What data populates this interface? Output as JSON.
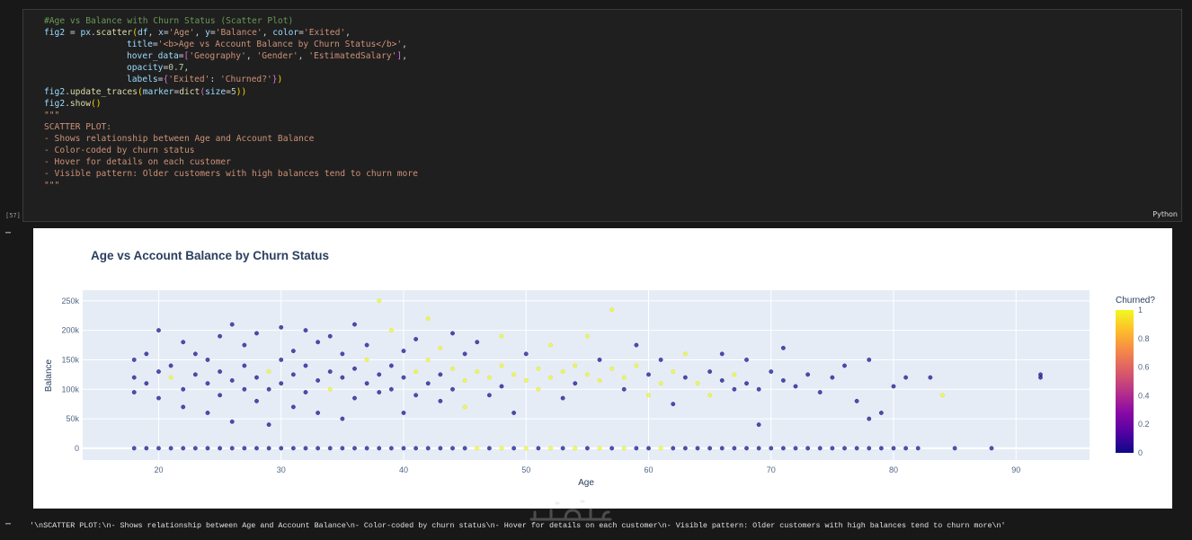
{
  "cell": {
    "exec_count": "[57]",
    "language": "Python",
    "code": {
      "comment": "#Age vs Balance with Churn Status (Scatter Plot)",
      "l1": [
        "fig2",
        " = ",
        "px",
        ".",
        "scatter",
        "(",
        "df",
        ", ",
        "x",
        "=",
        "'Age'",
        ", ",
        "y",
        "=",
        "'Balance'",
        ", ",
        "color",
        "=",
        "'Exited'",
        ","
      ],
      "l2": [
        "title",
        "=",
        "'<b>Age vs Account Balance by Churn Status</b>'",
        ","
      ],
      "l3": [
        "hover_data",
        "=",
        "[",
        "'Geography'",
        ", ",
        "'Gender'",
        ", ",
        "'EstimatedSalary'",
        "]",
        ","
      ],
      "l4": [
        "opacity",
        "=",
        "0.7",
        ","
      ],
      "l5": [
        "labels",
        "=",
        "{",
        "'Exited'",
        ": ",
        "'Churned?'",
        "}",
        ")"
      ],
      "l6": [
        "fig2",
        ".",
        "update_traces",
        "(",
        "marker",
        "=",
        "dict",
        "(",
        "size",
        "=",
        "5",
        "))"
      ],
      "l7": [
        "fig2",
        ".",
        "show",
        "()"
      ],
      "doc": [
        "\"\"\"",
        "SCATTER PLOT:",
        "- Shows relationship between Age and Account Balance",
        "- Color-coded by churn status",
        "- Hover for details on each customer",
        "- Visible pattern: Older customers with high balances tend to churn more",
        "\"\"\""
      ]
    }
  },
  "output": {
    "text": "'\\nSCATTER PLOT:\\n- Shows relationship between Age and Account Balance\\n- Color-coded by churn status\\n- Hover for details on each customer\\n- Visible pattern: Older customers with high balances tend to churn more\\n'"
  },
  "watermark": "خمسات",
  "chart_data": {
    "type": "scatter",
    "title": "Age vs Account Balance by Churn Status",
    "xlabel": "Age",
    "ylabel": "Balance",
    "xlim": [
      13.8,
      96
    ],
    "ylim": [
      -20000,
      268000
    ],
    "xticks": [
      20,
      30,
      40,
      50,
      60,
      70,
      80,
      90
    ],
    "yticks": [
      0,
      50000,
      100000,
      150000,
      200000,
      250000
    ],
    "ytick_labels": [
      "0",
      "50k",
      "100k",
      "150k",
      "200k",
      "250k"
    ],
    "colorbar": {
      "title": "Churned?",
      "ticks": [
        "0",
        "0.2",
        "0.4",
        "0.6",
        "0.8",
        "1"
      ],
      "colorscale": [
        "#0d0887",
        "#5302a3",
        "#8b0aa5",
        "#b83289",
        "#db5c68",
        "#f48849",
        "#febd2a",
        "#f0f921"
      ]
    },
    "grid": true,
    "marker_opacity": 0.7,
    "points": [
      [
        18,
        0,
        0
      ],
      [
        18,
        120000,
        0
      ],
      [
        18,
        95000,
        0
      ],
      [
        18,
        150000,
        0
      ],
      [
        19,
        0,
        0
      ],
      [
        19,
        110000,
        0
      ],
      [
        19,
        160000,
        0
      ],
      [
        20,
        0,
        0
      ],
      [
        20,
        130000,
        0
      ],
      [
        20,
        200000,
        0
      ],
      [
        20,
        85000,
        0
      ],
      [
        21,
        0,
        0
      ],
      [
        21,
        120000,
        1
      ],
      [
        21,
        140000,
        0
      ],
      [
        22,
        0,
        0
      ],
      [
        22,
        100000,
        0
      ],
      [
        22,
        180000,
        0
      ],
      [
        22,
        70000,
        0
      ],
      [
        23,
        0,
        0
      ],
      [
        23,
        125000,
        0
      ],
      [
        23,
        160000,
        0
      ],
      [
        24,
        0,
        0
      ],
      [
        24,
        110000,
        0
      ],
      [
        24,
        150000,
        0
      ],
      [
        24,
        60000,
        0
      ],
      [
        25,
        0,
        0
      ],
      [
        25,
        130000,
        0
      ],
      [
        25,
        190000,
        0
      ],
      [
        25,
        90000,
        0
      ],
      [
        26,
        0,
        0
      ],
      [
        26,
        115000,
        0
      ],
      [
        26,
        210000,
        0
      ],
      [
        26,
        45000,
        0
      ],
      [
        27,
        0,
        0
      ],
      [
        27,
        140000,
        0
      ],
      [
        27,
        100000,
        0
      ],
      [
        27,
        175000,
        0
      ],
      [
        28,
        0,
        0
      ],
      [
        28,
        120000,
        0
      ],
      [
        28,
        80000,
        0
      ],
      [
        28,
        195000,
        0
      ],
      [
        29,
        0,
        0
      ],
      [
        29,
        130000,
        1
      ],
      [
        29,
        100000,
        0
      ],
      [
        29,
        40000,
        0
      ],
      [
        30,
        0,
        0
      ],
      [
        30,
        110000,
        0
      ],
      [
        30,
        150000,
        0
      ],
      [
        30,
        205000,
        0
      ],
      [
        31,
        0,
        0
      ],
      [
        31,
        125000,
        0
      ],
      [
        31,
        70000,
        0
      ],
      [
        31,
        165000,
        0
      ],
      [
        32,
        0,
        0
      ],
      [
        32,
        140000,
        0
      ],
      [
        32,
        95000,
        0
      ],
      [
        32,
        200000,
        0
      ],
      [
        33,
        0,
        0
      ],
      [
        33,
        115000,
        0
      ],
      [
        33,
        180000,
        0
      ],
      [
        33,
        60000,
        0
      ],
      [
        34,
        0,
        0
      ],
      [
        34,
        130000,
        0
      ],
      [
        34,
        100000,
        1
      ],
      [
        34,
        190000,
        0
      ],
      [
        35,
        0,
        0
      ],
      [
        35,
        120000,
        0
      ],
      [
        35,
        160000,
        0
      ],
      [
        35,
        50000,
        0
      ],
      [
        36,
        0,
        0
      ],
      [
        36,
        135000,
        0
      ],
      [
        36,
        210000,
        0
      ],
      [
        36,
        85000,
        0
      ],
      [
        37,
        0,
        0
      ],
      [
        37,
        110000,
        0
      ],
      [
        37,
        150000,
        1
      ],
      [
        37,
        175000,
        0
      ],
      [
        38,
        0,
        0
      ],
      [
        38,
        125000,
        0
      ],
      [
        38,
        250000,
        1
      ],
      [
        38,
        95000,
        0
      ],
      [
        39,
        0,
        0
      ],
      [
        39,
        140000,
        0
      ],
      [
        39,
        100000,
        0
      ],
      [
        39,
        200000,
        1
      ],
      [
        40,
        0,
        0
      ],
      [
        40,
        120000,
        0
      ],
      [
        40,
        165000,
        0
      ],
      [
        40,
        60000,
        0
      ],
      [
        41,
        0,
        0
      ],
      [
        41,
        130000,
        1
      ],
      [
        41,
        90000,
        0
      ],
      [
        41,
        185000,
        0
      ],
      [
        42,
        0,
        0
      ],
      [
        42,
        110000,
        0
      ],
      [
        42,
        150000,
        1
      ],
      [
        42,
        220000,
        1
      ],
      [
        43,
        0,
        0
      ],
      [
        43,
        125000,
        0
      ],
      [
        43,
        170000,
        1
      ],
      [
        43,
        80000,
        0
      ],
      [
        44,
        0,
        0
      ],
      [
        44,
        135000,
        1
      ],
      [
        44,
        100000,
        0
      ],
      [
        44,
        195000,
        0
      ],
      [
        45,
        0,
        0
      ],
      [
        45,
        115000,
        1
      ],
      [
        45,
        160000,
        0
      ],
      [
        45,
        70000,
        1
      ],
      [
        46,
        0,
        1
      ],
      [
        46,
        130000,
        1
      ],
      [
        46,
        180000,
        0
      ],
      [
        47,
        0,
        0
      ],
      [
        47,
        120000,
        1
      ],
      [
        47,
        90000,
        0
      ],
      [
        48,
        0,
        1
      ],
      [
        48,
        140000,
        1
      ],
      [
        48,
        105000,
        0
      ],
      [
        48,
        190000,
        1
      ],
      [
        49,
        0,
        0
      ],
      [
        49,
        125000,
        1
      ],
      [
        49,
        60000,
        0
      ],
      [
        50,
        0,
        1
      ],
      [
        50,
        115000,
        1
      ],
      [
        50,
        160000,
        0
      ],
      [
        51,
        0,
        0
      ],
      [
        51,
        135000,
        1
      ],
      [
        51,
        100000,
        1
      ],
      [
        52,
        0,
        1
      ],
      [
        52,
        120000,
        1
      ],
      [
        52,
        175000,
        1
      ],
      [
        53,
        0,
        0
      ],
      [
        53,
        130000,
        1
      ],
      [
        53,
        85000,
        0
      ],
      [
        54,
        0,
        1
      ],
      [
        54,
        140000,
        1
      ],
      [
        54,
        110000,
        0
      ],
      [
        55,
        0,
        0
      ],
      [
        55,
        125000,
        1
      ],
      [
        55,
        190000,
        1
      ],
      [
        56,
        0,
        1
      ],
      [
        56,
        115000,
        1
      ],
      [
        56,
        150000,
        0
      ],
      [
        57,
        0,
        0
      ],
      [
        57,
        135000,
        1
      ],
      [
        57,
        235000,
        1
      ],
      [
        58,
        0,
        1
      ],
      [
        58,
        120000,
        1
      ],
      [
        58,
        100000,
        0
      ],
      [
        59,
        0,
        0
      ],
      [
        59,
        140000,
        1
      ],
      [
        59,
        175000,
        0
      ],
      [
        60,
        0,
        0
      ],
      [
        60,
        125000,
        0
      ],
      [
        60,
        90000,
        1
      ],
      [
        61,
        0,
        1
      ],
      [
        61,
        110000,
        1
      ],
      [
        61,
        150000,
        0
      ],
      [
        62,
        0,
        0
      ],
      [
        62,
        130000,
        1
      ],
      [
        62,
        75000,
        0
      ],
      [
        63,
        0,
        0
      ],
      [
        63,
        120000,
        0
      ],
      [
        63,
        160000,
        1
      ],
      [
        64,
        0,
        0
      ],
      [
        64,
        110000,
        1
      ],
      [
        65,
        0,
        0
      ],
      [
        65,
        130000,
        0
      ],
      [
        65,
        90000,
        1
      ],
      [
        66,
        0,
        0
      ],
      [
        66,
        115000,
        0
      ],
      [
        66,
        160000,
        0
      ],
      [
        67,
        0,
        0
      ],
      [
        67,
        125000,
        1
      ],
      [
        67,
        100000,
        0
      ],
      [
        68,
        0,
        0
      ],
      [
        68,
        110000,
        0
      ],
      [
        68,
        150000,
        0
      ],
      [
        69,
        0,
        0
      ],
      [
        69,
        100000,
        0
      ],
      [
        69,
        40000,
        0
      ],
      [
        70,
        0,
        0
      ],
      [
        70,
        130000,
        0
      ],
      [
        71,
        0,
        0
      ],
      [
        71,
        115000,
        0
      ],
      [
        71,
        170000,
        0
      ],
      [
        72,
        0,
        0
      ],
      [
        72,
        105000,
        0
      ],
      [
        73,
        0,
        0
      ],
      [
        73,
        125000,
        0
      ],
      [
        74,
        0,
        0
      ],
      [
        74,
        95000,
        0
      ],
      [
        75,
        0,
        0
      ],
      [
        75,
        120000,
        0
      ],
      [
        76,
        0,
        0
      ],
      [
        76,
        140000,
        0
      ],
      [
        77,
        0,
        0
      ],
      [
        77,
        80000,
        0
      ],
      [
        78,
        0,
        0
      ],
      [
        78,
        50000,
        0
      ],
      [
        78,
        150000,
        0
      ],
      [
        79,
        0,
        0
      ],
      [
        79,
        60000,
        0
      ],
      [
        80,
        0,
        0
      ],
      [
        80,
        105000,
        0
      ],
      [
        81,
        0,
        0
      ],
      [
        81,
        120000,
        0
      ],
      [
        82,
        0,
        0
      ],
      [
        83,
        120000,
        0
      ],
      [
        84,
        90000,
        1
      ],
      [
        85,
        0,
        0
      ],
      [
        88,
        0,
        0
      ],
      [
        92,
        120000,
        0
      ],
      [
        92,
        125000,
        0
      ]
    ]
  }
}
